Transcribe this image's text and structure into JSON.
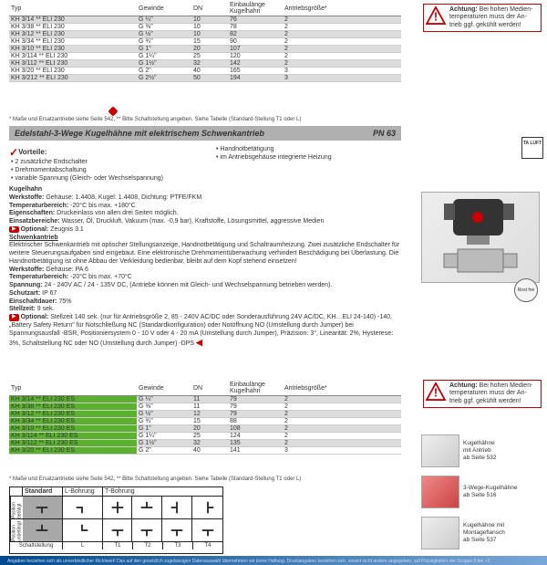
{
  "warning1": {
    "bold": "Achtung:",
    "text": " Bei hohen Medien­temperaturen muss der An­trieb ggf. gekühlt werden!"
  },
  "warning2": {
    "bold": "Achtung:",
    "text": " Bei hohen Medien­temperaturen muss der An­trieb ggf. gekühlt werden!"
  },
  "table1": {
    "headers": {
      "typ": "Typ",
      "gewinde": "Gewinde",
      "dn": "DN",
      "einbau": "Einbaulänge",
      "kugel": "Kugelhahn",
      "antrieb": "Antriebsgröße*"
    },
    "rows": [
      {
        "typ": "KH 3/14 ** ELI 230",
        "gewinde": "G ¼\"",
        "dn": "10",
        "kugel": "76",
        "antrieb": "2"
      },
      {
        "typ": "KH 3/38 ** ELI 230",
        "gewinde": "G ⅜\"",
        "dn": "10",
        "kugel": "78",
        "antrieb": "2"
      },
      {
        "typ": "KH 3/12 ** ELI 230",
        "gewinde": "G ½\"",
        "dn": "10",
        "kugel": "82",
        "antrieb": "2"
      },
      {
        "typ": "KH 3/34 ** ELI 230",
        "gewinde": "G ¾\"",
        "dn": "15",
        "kugel": "90",
        "antrieb": "2"
      },
      {
        "typ": "KH 3/10 ** ELI 230",
        "gewinde": "G 1\"",
        "dn": "20",
        "kugel": "107",
        "antrieb": "2"
      },
      {
        "typ": "KH 3/114 ** ELI 230",
        "gewinde": "G 1¼\"",
        "dn": "25",
        "kugel": "120",
        "antrieb": "2"
      },
      {
        "typ": "KH 3/112 ** ELI 230",
        "gewinde": "G 1½\"",
        "dn": "32",
        "kugel": "142",
        "antrieb": "2"
      },
      {
        "typ": "KH 3/20 ** ELI 230",
        "gewinde": "G 2\"",
        "dn": "40",
        "kugel": "165",
        "antrieb": "3"
      },
      {
        "typ": "KH 3/212 ** ELI 230",
        "gewinde": "G 2½\"",
        "dn": "50",
        "kugel": "194",
        "antrieb": "3"
      }
    ],
    "footnote": "* Maße und Ersatzantriebe siehe Seite 542, ** Bitte Schaltstellung angeben. Siehe Tabelle (Standard-Stellung T1 oder L)"
  },
  "section_title": "Edelstahl-3-Wege Kugelhähne mit elektrischem Schwenkantrieb",
  "section_pn": "PN 63",
  "vorteile": {
    "label": "Vorteile:",
    "col1": [
      "2 zusätzliche Endschalter",
      "Drehmomentabschaltung",
      "variable Spannung (Gleich- oder Wechsel­spannung)"
    ],
    "col2": [
      "Handnotbetätigung",
      "im Antriebsgehäuse integrierte Heizung"
    ]
  },
  "body": {
    "kugelhahn_title": "Kugelhahn",
    "werkstoffe1_l": "Werkstoffe:",
    "werkstoffe1": " Gehäuse: 1.4408, Kugel: 1.4408, Dichtung: PTFE/FKM",
    "tempber1_l": "Temperaturbereich:",
    "tempber1": " -20°C bis max. +180°C",
    "eigen_l": "Eigenschaften:",
    "eigen": " Druckeinlass von allen drei Seiten möglich.",
    "einsatz_l": "Einsatzbereiche:",
    "einsatz": " Wasser, Öl, Druckluft, Vakuum (max. -0,9 bar), Kraftstoffe, Lösungsmittel, aggressive Medien",
    "optional1_l": "Optional:",
    "optional1": " Zeugnis 3.1",
    "schwenk_title": "Schwenkantrieb",
    "schwenk_desc": "Elektrischer Schwenkantrieb mit optischer Stellungsanzeige, Handnotbetätigung und Schaltraumheizung. Zwei zusätzliche Endschalter für weitere Steuerungsaufgaben sind eingebaut. Eine elektronische Drehmomentüberwachung verhindert Be­schädigung bei Überlastung. Die Handnotbetätigung ist ohne Abbau der Verkleidung bedienbar, bleibt auf dem Kopf ste­hend einsetzen!",
    "werkstoffe2_l": "Werkstoffe:",
    "werkstoffe2": " Gehäuse: PA 6",
    "tempber2_l": "Temperaturbereich:",
    "tempber2": " -20°C bis max. +70°C",
    "spannung_l": "Spannung:",
    "spannung": " 24 - 240V AC / 24 - 135V DC, (Antriebe können mit Gleich- und Wechselspannung betrieben werden).",
    "schutz_l": "Schutzart:",
    "schutz": " IP 67",
    "ed_l": "Einschaltdauer:",
    "ed": " 75%",
    "stell_l": "Stellzeit:",
    "stell": " 9 sek.",
    "optional2_l": "Optional:",
    "optional2": " Stellzeit 140 sek. (nur für Antriebsgröße 2, 85 - 240V AC/DC oder Sonderausführung 24V AC/DC, KH…ELI 24-140) -140, „Battery Safety Return\" für Notschließung NC (Standardkonfiguration) oder Notöffnung NO (Umstellung durch Jumper) bei Spannungsausfall -BSR, Positioniersystem 0 - 10 V oder 4 - 20 mA (Umstellung durch Jumper), Präzision: 3°, Linearität: 2%, Hysterese: 3%, Schaltstellung NC oder NO (Umstellung durch Jumper) -DPS"
  },
  "table2": {
    "headers": {
      "typ": "Typ",
      "gewinde": "Gewinde",
      "dn": "DN",
      "einbau": "Einbaulänge",
      "kugel": "Kugelhahn",
      "antrieb": "Antriebsgröße*"
    },
    "rows": [
      {
        "typ": "KH 3/14 ** ELI 230 ES",
        "gewinde": "G ¼\"",
        "dn": "11",
        "kugel": "79",
        "antrieb": "2"
      },
      {
        "typ": "KH 3/38 ** ELI 230 ES",
        "gewinde": "G ⅜\"",
        "dn": "11",
        "kugel": "79",
        "antrieb": "2"
      },
      {
        "typ": "KH 3/12 ** ELI 230 ES",
        "gewinde": "G ½\"",
        "dn": "12",
        "kugel": "79",
        "antrieb": "2"
      },
      {
        "typ": "KH 3/34 ** ELI 230 ES",
        "gewinde": "G ¾\"",
        "dn": "15",
        "kugel": "88",
        "antrieb": "2"
      },
      {
        "typ": "KH 3/10 ** ELI 230 ES",
        "gewinde": "G 1\"",
        "dn": "20",
        "kugel": "108",
        "antrieb": "2"
      },
      {
        "typ": "KH 3/114 ** ELI 230 ES",
        "gewinde": "G 1¼\"",
        "dn": "25",
        "kugel": "124",
        "antrieb": "2"
      },
      {
        "typ": "KH 3/112 ** ELI 230 ES",
        "gewinde": "G 1½\"",
        "dn": "32",
        "kugel": "135",
        "antrieb": "2"
      },
      {
        "typ": "KH 3/20 ** ELI 230 ES",
        "gewinde": "G 2\"",
        "dn": "40",
        "kugel": "141",
        "antrieb": "3"
      }
    ],
    "footnote": "* Maße und Ersatzantriebe siehe Seite 542, ** Bitte Schaltstellung angeben. Siehe Tabelle (Standard-Stellung T1 oder L)"
  },
  "diagram": {
    "hdr_std": "Standard",
    "hdr_l": "L-Bohrung",
    "hdr_t": "T-Bohrung",
    "row1_label": "Position\nbetätigt",
    "row2_label": "Position\nunbetätigt",
    "footer_schalt": "Schaltstellung",
    "f_l": "L",
    "f_t1": "T1",
    "f_t2": "T2",
    "f_t3": "T3",
    "f_t4": "T4"
  },
  "thumbs": {
    "t1": "Kugelhähne\nmit Antrieb\nab Seite 532",
    "t2": "3-Wege-Kugelhähne\nab Seite 516",
    "t3": "Kugelhähne mit\nMontageflansch\nab Seite 537"
  },
  "taluft": "TA\nLUFT",
  "rostfrei": "Rost\nfrei",
  "bottom_text": "Angaben beziehen sich als unverbindlicher Richtwert! Das auf den gesetzlich zugelassigen Datenauswahl übernehmen wir keine Haftung. Druckangaben beziehen sich, soweit nicht anders angegeben, auf Flüssigkeiten der Gruppe II bei +2"
}
